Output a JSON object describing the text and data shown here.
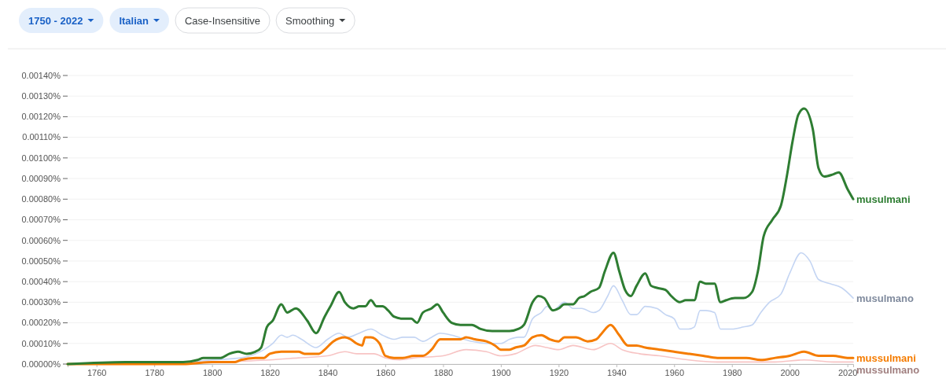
{
  "chart_data": {
    "type": "line",
    "annotations": [
      "1750 - 2022",
      "Italian",
      "Case-Insensitive",
      "Smoothing"
    ],
    "xlim": [
      1750,
      2022
    ],
    "xticks": [
      1760,
      1780,
      1800,
      1820,
      1840,
      1860,
      1880,
      1900,
      1920,
      1940,
      1960,
      1980,
      2000,
      2020
    ],
    "ylim": [
      0,
      0.0014
    ],
    "yticks": [
      {
        "value": 0,
        "label": "0.00000%"
      },
      {
        "value": 0.0001,
        "label": "0.00010%"
      },
      {
        "value": 0.0002,
        "label": "0.00020%"
      },
      {
        "value": 0.0003,
        "label": "0.00030%"
      },
      {
        "value": 0.0004,
        "label": "0.00040%"
      },
      {
        "value": 0.0005,
        "label": "0.00050%"
      },
      {
        "value": 0.0006,
        "label": "0.00060%"
      },
      {
        "value": 0.0007,
        "label": "0.00070%"
      },
      {
        "value": 0.0008,
        "label": "0.00080%"
      },
      {
        "value": 0.0009,
        "label": "0.00090%"
      },
      {
        "value": 0.001,
        "label": "0.00100%"
      },
      {
        "value": 0.0011,
        "label": "0.00110%"
      },
      {
        "value": 0.0012,
        "label": "0.00120%"
      },
      {
        "value": 0.0013,
        "label": "0.00130%"
      },
      {
        "value": 0.0014,
        "label": "0.00140%"
      }
    ],
    "grid": "y",
    "line_style": "solid",
    "marker": "none",
    "series": [
      {
        "name": "mussulmano",
        "color": "#f7c4c4",
        "x": [
          1750,
          1800,
          1820,
          1830,
          1840,
          1846,
          1850,
          1856,
          1860,
          1865,
          1870,
          1880,
          1888,
          1895,
          1900,
          1905,
          1912,
          1916,
          1920,
          1925,
          1932,
          1938,
          1942,
          1948,
          1955,
          1965,
          1975,
          1985,
          1995,
          2005,
          2015,
          2022
        ],
        "values": [
          0,
          1e-05,
          2e-05,
          3e-05,
          4e-05,
          6e-05,
          5e-05,
          5e-05,
          3e-05,
          2e-05,
          3e-05,
          4e-05,
          7e-05,
          6e-05,
          4e-05,
          5e-05,
          9e-05,
          8e-05,
          7e-05,
          9e-05,
          7e-05,
          0.0001,
          7e-05,
          5e-05,
          4e-05,
          2e-05,
          1e-05,
          1e-05,
          1e-05,
          2e-05,
          1e-05,
          1e-05
        ]
      },
      {
        "name": "musulmano",
        "color": "#c4d5f3",
        "x": [
          1750,
          1790,
          1800,
          1810,
          1818,
          1821,
          1824,
          1826,
          1828,
          1831,
          1836,
          1840,
          1844,
          1847,
          1851,
          1855,
          1859,
          1863,
          1866,
          1870,
          1873,
          1876,
          1879,
          1883,
          1890,
          1895,
          1900,
          1903,
          1906,
          1908,
          1911,
          1914,
          1916,
          1918,
          1922,
          1925,
          1928,
          1932,
          1934,
          1937,
          1939,
          1942,
          1945,
          1947,
          1950,
          1954,
          1957,
          1960,
          1962,
          1965,
          1967,
          1969,
          1971,
          1974,
          1976,
          1980,
          1984,
          1987,
          1990,
          1993,
          1997,
          2000,
          2004,
          2007,
          2010,
          2014,
          2018,
          2022
        ],
        "values": [
          0,
          1e-05,
          2e-05,
          3e-05,
          7e-05,
          0.0001,
          0.00014,
          0.00013,
          0.00014,
          0.00012,
          8e-05,
          0.00012,
          0.00015,
          0.00013,
          0.00015,
          0.00017,
          0.00014,
          0.00012,
          0.00013,
          0.00013,
          0.00011,
          0.00013,
          0.00015,
          0.00014,
          0.00011,
          0.0001,
          0.0001,
          0.00012,
          0.00013,
          0.00013,
          0.00022,
          0.00025,
          0.00028,
          0.00026,
          0.0003,
          0.00027,
          0.00027,
          0.00025,
          0.00026,
          0.00033,
          0.00038,
          0.00031,
          0.00024,
          0.00024,
          0.00028,
          0.00027,
          0.00024,
          0.00022,
          0.00017,
          0.00017,
          0.00018,
          0.00026,
          0.00026,
          0.00025,
          0.00017,
          0.00017,
          0.00018,
          0.00019,
          0.00025,
          0.0003,
          0.00034,
          0.00044,
          0.00054,
          0.0005,
          0.00041,
          0.00039,
          0.00037,
          0.00032
        ]
      },
      {
        "name": "mussulmani",
        "color": "#f57c00",
        "x": [
          1750,
          1790,
          1800,
          1803,
          1806,
          1808,
          1810,
          1815,
          1818,
          1820,
          1824,
          1827,
          1830,
          1832,
          1837,
          1839,
          1842,
          1846,
          1848,
          1850,
          1852,
          1853,
          1855,
          1858,
          1860,
          1863,
          1866,
          1870,
          1873,
          1876,
          1879,
          1882,
          1886,
          1888,
          1891,
          1895,
          1898,
          1900,
          1903,
          1905,
          1908,
          1911,
          1914,
          1917,
          1920,
          1922,
          1926,
          1930,
          1933,
          1935,
          1938,
          1941,
          1944,
          1947,
          1950,
          1955,
          1960,
          1965,
          1970,
          1975,
          1980,
          1985,
          1990,
          1995,
          2000,
          2005,
          2010,
          2015,
          2020,
          2022
        ],
        "values": [
          0,
          0,
          1e-05,
          1e-05,
          1e-05,
          1e-05,
          2e-05,
          3e-05,
          3e-05,
          5e-05,
          6e-05,
          6e-05,
          6e-05,
          5e-05,
          5e-05,
          7e-05,
          0.00011,
          0.00013,
          0.00012,
          0.0001,
          9e-05,
          0.00013,
          0.00013,
          0.0001,
          4e-05,
          3e-05,
          3e-05,
          4e-05,
          4e-05,
          7e-05,
          0.00012,
          0.00012,
          0.00012,
          0.00013,
          0.00012,
          0.00011,
          9e-05,
          7e-05,
          7e-05,
          8e-05,
          9e-05,
          0.00013,
          0.00014,
          0.00012,
          0.00011,
          0.00013,
          0.00013,
          0.00011,
          0.00012,
          0.00015,
          0.00019,
          0.00014,
          9e-05,
          9e-05,
          8e-05,
          7e-05,
          6e-05,
          5e-05,
          4e-05,
          3e-05,
          3e-05,
          3e-05,
          2e-05,
          3e-05,
          4e-05,
          6e-05,
          4e-05,
          4e-05,
          3e-05,
          3e-05
        ]
      },
      {
        "name": "musulmani",
        "color": "#2e7d32",
        "x": [
          1750,
          1770,
          1790,
          1795,
          1797,
          1800,
          1803,
          1806,
          1809,
          1812,
          1815,
          1817,
          1819,
          1821,
          1824,
          1826,
          1829,
          1833,
          1836,
          1839,
          1841,
          1844,
          1846,
          1849,
          1851,
          1853,
          1855,
          1857,
          1859,
          1861,
          1863,
          1866,
          1869,
          1871,
          1873,
          1876,
          1878,
          1880,
          1883,
          1886,
          1890,
          1893,
          1897,
          1900,
          1903,
          1906,
          1908,
          1911,
          1913,
          1915,
          1918,
          1920,
          1922,
          1925,
          1927,
          1929,
          1931,
          1934,
          1936,
          1939,
          1941,
          1943,
          1945,
          1947,
          1950,
          1952,
          1954,
          1957,
          1959,
          1962,
          1964,
          1967,
          1969,
          1971,
          1974,
          1976,
          1978,
          1981,
          1984,
          1987,
          1989,
          1991,
          1994,
          1997,
          1999,
          2001,
          2003,
          2005,
          2008,
          2010,
          2012,
          2015,
          2017,
          2020,
          2022
        ],
        "values": [
          0,
          1e-05,
          1e-05,
          2e-05,
          3e-05,
          3e-05,
          3e-05,
          5e-05,
          6e-05,
          5e-05,
          6e-05,
          8e-05,
          0.00018,
          0.00021,
          0.00029,
          0.00025,
          0.00027,
          0.00021,
          0.00015,
          0.00023,
          0.00028,
          0.00035,
          0.0003,
          0.00027,
          0.00028,
          0.00028,
          0.00031,
          0.00028,
          0.00028,
          0.00026,
          0.00023,
          0.00022,
          0.00022,
          0.0002,
          0.00025,
          0.00027,
          0.00029,
          0.00025,
          0.0002,
          0.00019,
          0.00019,
          0.00017,
          0.00016,
          0.00016,
          0.00016,
          0.00017,
          0.00019,
          0.0003,
          0.00033,
          0.00032,
          0.00026,
          0.00027,
          0.00029,
          0.00029,
          0.00032,
          0.00033,
          0.00035,
          0.00037,
          0.00045,
          0.00054,
          0.00045,
          0.00036,
          0.00033,
          0.00038,
          0.00044,
          0.00038,
          0.00037,
          0.00036,
          0.00033,
          0.0003,
          0.00031,
          0.00031,
          0.0004,
          0.00039,
          0.00039,
          0.0003,
          0.00031,
          0.00032,
          0.00032,
          0.00035,
          0.00045,
          0.00062,
          0.0007,
          0.00077,
          0.00091,
          0.00108,
          0.00121,
          0.00124,
          0.00114,
          0.00095,
          0.00091,
          0.00092,
          0.00093,
          0.00085,
          0.0008
        ]
      }
    ]
  }
}
